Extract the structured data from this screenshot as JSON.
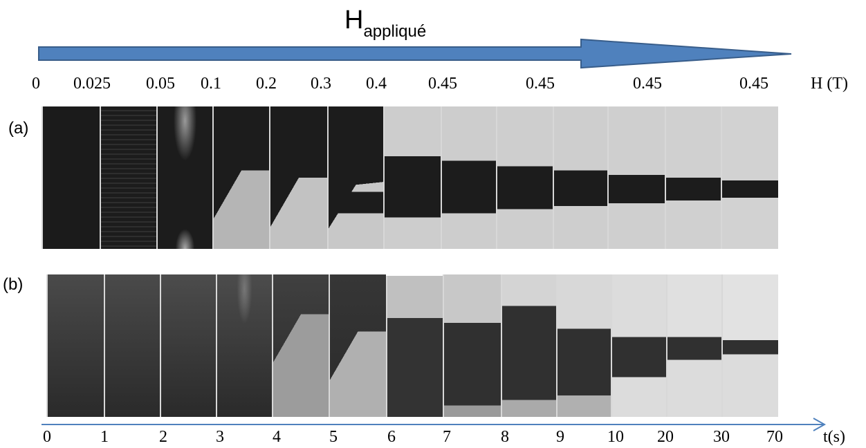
{
  "title": {
    "main": "H",
    "sub": "appliqué"
  },
  "field_axis": {
    "unit_label": "H (T)",
    "values": [
      "0",
      "0.025",
      "0.05",
      "0.1",
      "0.2",
      "0.3",
      "0.4",
      "0.45",
      "0.45",
      "0.45",
      "0.45"
    ]
  },
  "time_axis": {
    "unit_label": "t(s)",
    "values": [
      "0",
      "1",
      "2",
      "3",
      "4",
      "5",
      "6",
      "7",
      "8",
      "9",
      "10",
      "20",
      "30",
      "70"
    ]
  },
  "panels": {
    "a": {
      "label": "(a)"
    },
    "b": {
      "label": "(b)"
    }
  },
  "colors": {
    "arrow_fill": "#4f81bd",
    "arrow_stroke": "#385d8a",
    "time_axis": "#4f81bd",
    "dark_domain": "#1a1a1a",
    "bright_domain": "#d4d4d4"
  }
}
